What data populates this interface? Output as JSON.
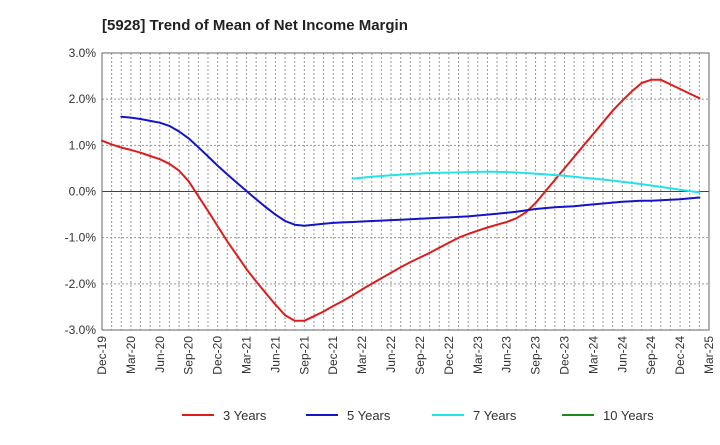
{
  "chart_data": {
    "type": "line",
    "title": "[5928]  Trend of Mean of Net Income Margin",
    "xlabel": "",
    "ylabel": "",
    "ylim": [
      -3.0,
      3.0
    ],
    "y_ticks": [
      3.0,
      2.0,
      1.0,
      0.0,
      -1.0,
      -2.0,
      -3.0
    ],
    "y_tick_labels": [
      "3.0%",
      "2.0%",
      "1.0%",
      "0.0%",
      "-1.0%",
      "-2.0%",
      "-3.0%"
    ],
    "x_range": [
      "2019-12",
      "2025-03"
    ],
    "x_tick_labels": [
      "Dec-19",
      "Mar-20",
      "Jun-20",
      "Sep-20",
      "Dec-20",
      "Mar-21",
      "Jun-21",
      "Sep-21",
      "Dec-21",
      "Mar-22",
      "Jun-22",
      "Sep-22",
      "Dec-22",
      "Mar-23",
      "Jun-23",
      "Sep-23",
      "Dec-23",
      "Mar-24",
      "Jun-24",
      "Sep-24",
      "Dec-24",
      "Mar-25"
    ],
    "grid": true,
    "legend_position": "bottom",
    "series": [
      {
        "name": "3 Years",
        "color": "#dd1c1c",
        "points": [
          [
            "2019-12",
            1.1
          ],
          [
            "2020-01",
            1.02
          ],
          [
            "2020-02",
            0.95
          ],
          [
            "2020-03",
            0.9
          ],
          [
            "2020-04",
            0.84
          ],
          [
            "2020-05",
            0.77
          ],
          [
            "2020-06",
            0.7
          ],
          [
            "2020-07",
            0.6
          ],
          [
            "2020-08",
            0.45
          ],
          [
            "2020-09",
            0.22
          ],
          [
            "2020-10",
            -0.1
          ],
          [
            "2020-11",
            -0.42
          ],
          [
            "2020-12",
            -0.75
          ],
          [
            "2021-01",
            -1.08
          ],
          [
            "2021-02",
            -1.38
          ],
          [
            "2021-03",
            -1.68
          ],
          [
            "2021-04",
            -1.95
          ],
          [
            "2021-05",
            -2.2
          ],
          [
            "2021-06",
            -2.45
          ],
          [
            "2021-07",
            -2.68
          ],
          [
            "2021-08",
            -2.8
          ],
          [
            "2021-09",
            -2.8
          ],
          [
            "2021-10",
            -2.7
          ],
          [
            "2021-11",
            -2.6
          ],
          [
            "2021-12",
            -2.48
          ],
          [
            "2022-01",
            -2.37
          ],
          [
            "2022-02",
            -2.25
          ],
          [
            "2022-03",
            -2.12
          ],
          [
            "2022-04",
            -2.0
          ],
          [
            "2022-05",
            -1.88
          ],
          [
            "2022-06",
            -1.76
          ],
          [
            "2022-07",
            -1.64
          ],
          [
            "2022-08",
            -1.53
          ],
          [
            "2022-09",
            -1.43
          ],
          [
            "2022-10",
            -1.33
          ],
          [
            "2022-11",
            -1.22
          ],
          [
            "2022-12",
            -1.11
          ],
          [
            "2023-01",
            -1.0
          ],
          [
            "2023-02",
            -0.92
          ],
          [
            "2023-03",
            -0.85
          ],
          [
            "2023-04",
            -0.78
          ],
          [
            "2023-05",
            -0.72
          ],
          [
            "2023-06",
            -0.66
          ],
          [
            "2023-07",
            -0.58
          ],
          [
            "2023-08",
            -0.45
          ],
          [
            "2023-09",
            -0.25
          ],
          [
            "2023-10",
            0.0
          ],
          [
            "2023-11",
            0.25
          ],
          [
            "2023-12",
            0.5
          ],
          [
            "2024-01",
            0.75
          ],
          [
            "2024-02",
            1.0
          ],
          [
            "2024-03",
            1.25
          ],
          [
            "2024-04",
            1.5
          ],
          [
            "2024-05",
            1.75
          ],
          [
            "2024-06",
            1.97
          ],
          [
            "2024-07",
            2.17
          ],
          [
            "2024-08",
            2.35
          ],
          [
            "2024-09",
            2.42
          ],
          [
            "2024-10",
            2.42
          ],
          [
            "2024-11",
            2.32
          ],
          [
            "2024-12",
            2.22
          ],
          [
            "2025-01",
            2.12
          ],
          [
            "2025-02",
            2.02
          ]
        ]
      },
      {
        "name": "5 Years",
        "color": "#1414c8",
        "points": [
          [
            "2020-02",
            1.62
          ],
          [
            "2020-03",
            1.6
          ],
          [
            "2020-04",
            1.57
          ],
          [
            "2020-05",
            1.53
          ],
          [
            "2020-06",
            1.49
          ],
          [
            "2020-07",
            1.42
          ],
          [
            "2020-08",
            1.3
          ],
          [
            "2020-09",
            1.15
          ],
          [
            "2020-10",
            0.96
          ],
          [
            "2020-11",
            0.76
          ],
          [
            "2020-12",
            0.56
          ],
          [
            "2021-01",
            0.37
          ],
          [
            "2021-02",
            0.19
          ],
          [
            "2021-03",
            0.01
          ],
          [
            "2021-04",
            -0.17
          ],
          [
            "2021-05",
            -0.34
          ],
          [
            "2021-06",
            -0.5
          ],
          [
            "2021-07",
            -0.64
          ],
          [
            "2021-08",
            -0.72
          ],
          [
            "2021-09",
            -0.74
          ],
          [
            "2021-10",
            -0.72
          ],
          [
            "2021-11",
            -0.7
          ],
          [
            "2021-12",
            -0.68
          ],
          [
            "2022-01",
            -0.67
          ],
          [
            "2022-02",
            -0.66
          ],
          [
            "2022-03",
            -0.65
          ],
          [
            "2022-04",
            -0.64
          ],
          [
            "2022-05",
            -0.63
          ],
          [
            "2022-06",
            -0.62
          ],
          [
            "2022-07",
            -0.61
          ],
          [
            "2022-08",
            -0.6
          ],
          [
            "2022-09",
            -0.59
          ],
          [
            "2022-10",
            -0.58
          ],
          [
            "2022-11",
            -0.57
          ],
          [
            "2022-12",
            -0.56
          ],
          [
            "2023-01",
            -0.55
          ],
          [
            "2023-02",
            -0.54
          ],
          [
            "2023-03",
            -0.52
          ],
          [
            "2023-04",
            -0.5
          ],
          [
            "2023-05",
            -0.48
          ],
          [
            "2023-06",
            -0.46
          ],
          [
            "2023-07",
            -0.44
          ],
          [
            "2023-08",
            -0.41
          ],
          [
            "2023-09",
            -0.38
          ],
          [
            "2023-10",
            -0.36
          ],
          [
            "2023-11",
            -0.34
          ],
          [
            "2023-12",
            -0.33
          ],
          [
            "2024-01",
            -0.32
          ],
          [
            "2024-02",
            -0.3
          ],
          [
            "2024-03",
            -0.28
          ],
          [
            "2024-04",
            -0.26
          ],
          [
            "2024-05",
            -0.24
          ],
          [
            "2024-06",
            -0.22
          ],
          [
            "2024-07",
            -0.21
          ],
          [
            "2024-08",
            -0.2
          ],
          [
            "2024-09",
            -0.2
          ],
          [
            "2024-10",
            -0.19
          ],
          [
            "2024-11",
            -0.18
          ],
          [
            "2024-12",
            -0.17
          ],
          [
            "2025-01",
            -0.15
          ],
          [
            "2025-02",
            -0.13
          ]
        ]
      },
      {
        "name": "7 Years",
        "color": "#22e4e8",
        "points": [
          [
            "2022-02",
            0.28
          ],
          [
            "2022-04",
            0.32
          ],
          [
            "2022-06",
            0.35
          ],
          [
            "2022-08",
            0.38
          ],
          [
            "2022-10",
            0.4
          ],
          [
            "2022-12",
            0.41
          ],
          [
            "2023-02",
            0.42
          ],
          [
            "2023-04",
            0.43
          ],
          [
            "2023-06",
            0.42
          ],
          [
            "2023-08",
            0.4
          ],
          [
            "2023-10",
            0.37
          ],
          [
            "2023-12",
            0.34
          ],
          [
            "2024-02",
            0.3
          ],
          [
            "2024-04",
            0.26
          ],
          [
            "2024-06",
            0.21
          ],
          [
            "2024-08",
            0.16
          ],
          [
            "2024-10",
            0.1
          ],
          [
            "2024-12",
            0.04
          ],
          [
            "2025-02",
            -0.02
          ]
        ]
      },
      {
        "name": "10 Years",
        "color": "#1a8a1a",
        "points": []
      }
    ]
  }
}
